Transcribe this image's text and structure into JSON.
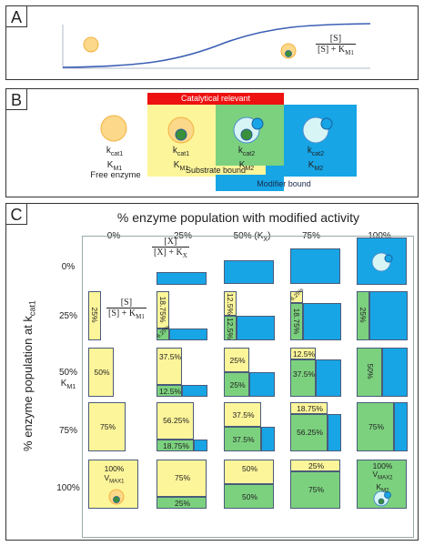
{
  "panelA": {
    "letter": "A",
    "formula_num": "[S]",
    "formula_den": "[S] + K",
    "formula_sub": "M1"
  },
  "panelB": {
    "letter": "B",
    "catalytical_relevant": "Catalytical relevant",
    "substrate_bound": "Substrate bound",
    "modifier_bound": "Modifier bound",
    "free_enzyme": "Free enzyme",
    "kcat1": "k",
    "kcat1_sub": "cat1",
    "kcat2_sub": "cat2",
    "km": "K",
    "km1_sub": "M1",
    "km2_sub": "M2"
  },
  "panelC": {
    "letter": "C",
    "title": "% enzyme population with modified activity",
    "ylabel": "% enzyme population at k",
    "ylabel_sub": "cat1",
    "col_headers": [
      "0%",
      "25%",
      "50% (K",
      "75%",
      "100%"
    ],
    "col_header_ksub": "X",
    "col_header_close": ")",
    "row_headers": [
      "0%",
      "25%",
      "50%",
      "75%",
      "100%"
    ],
    "row_km": "K",
    "row_km_sub": "M1",
    "fracX_num": "[X]",
    "fracX_den": "[X] + K",
    "fracX_sub": "X",
    "fracS_num": "[S]",
    "fracS_den": "[S] + K",
    "fracS_sub": "M1",
    "cells": {
      "r25c0": "25%",
      "r25c1a": "18.75%",
      "r25c1b": "6.25%",
      "r25c2a": "12.5%",
      "r25c2b": "12.5%",
      "r25c3a": "6.25%",
      "r25c3b": "18.75%",
      "r25c4": "25%",
      "r50c0": "50%",
      "r50c1a": "37.5%",
      "r50c1b": "12.5%",
      "r50c2a": "25%",
      "r50c2b": "25%",
      "r50c3a": "12.5%",
      "r50c3b": "37.5%",
      "r50c4": "50%",
      "r75c0": "75%",
      "r75c1a": "56.25%",
      "r75c1b": "18.75%",
      "r75c2a": "37.5%",
      "r75c2b": "37.5%",
      "r75c3a": "18.75%",
      "r75c3b": "56.25%",
      "r75c4": "75%",
      "r100c0a": "100%",
      "r100c0b": "V",
      "r100c0bsub": "MAX1",
      "r100c1a": "75%",
      "r100c1b": "25%",
      "r100c2a": "50%",
      "r100c2b": "50%",
      "r100c3a": "25%",
      "r100c3b": "75%",
      "r100c4a": "100%",
      "r100c4b": "V",
      "r100c4bsub": "MAX2",
      "r100c4c": "K",
      "r100c4csub": "M2"
    }
  },
  "colors": {
    "yellow": "#fdf59a",
    "green": "#7cd17f",
    "blue": "#17a5e6",
    "red": "#ee1111",
    "curve": "#3b5fb5",
    "enzyme_fill": "#fbd88a",
    "enzyme_stroke": "#f2b340"
  }
}
